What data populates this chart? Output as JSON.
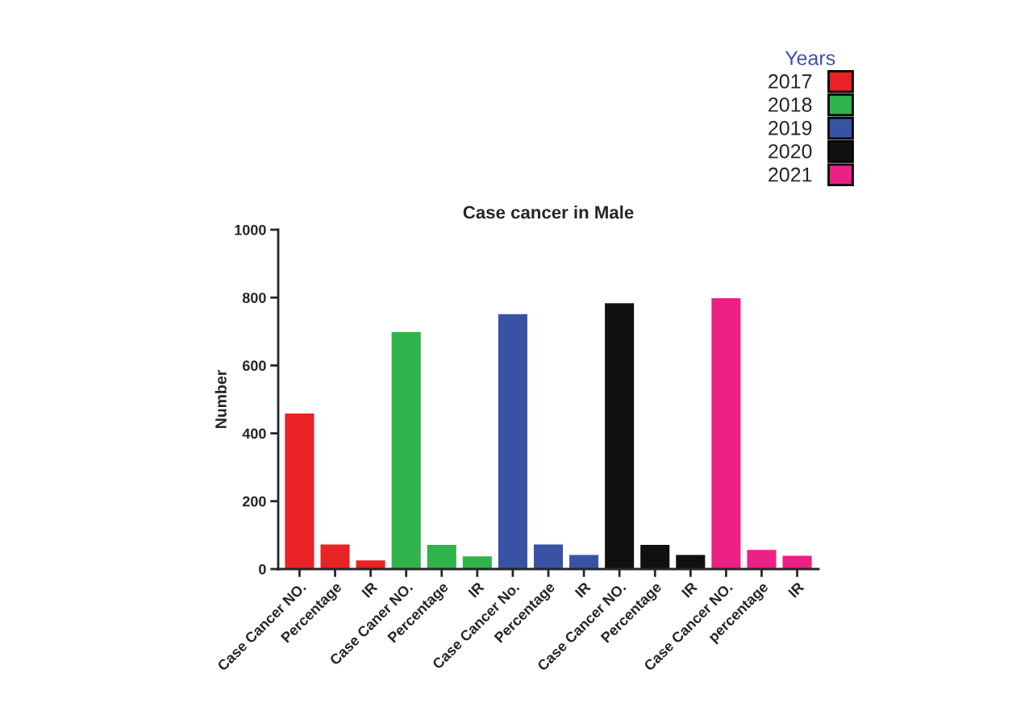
{
  "chart_data": {
    "type": "bar",
    "title": "Case cancer in Male",
    "ylabel": "Number",
    "legend_title": "Years",
    "categories": [
      "Case Cancer NO.",
      "Percentage",
      "IR",
      "Case Caner NO.",
      "Percentage",
      "IR",
      "Case Cancer No.",
      "Percentage",
      "IR",
      "Case Cancer NO.",
      "Percentage",
      "IR",
      "Case Cancer NO.",
      "percentage",
      "IR"
    ],
    "series": [
      {
        "name": "2017",
        "color": "#e82225",
        "values": [
          460,
          74,
          27,
          null,
          null,
          null,
          null,
          null,
          null,
          null,
          null,
          null,
          null,
          null,
          null
        ]
      },
      {
        "name": "2018",
        "color": "#2fb34a",
        "values": [
          null,
          null,
          null,
          700,
          73,
          39,
          null,
          null,
          null,
          null,
          null,
          null,
          null,
          null,
          null
        ]
      },
      {
        "name": "2019",
        "color": "#3953a4",
        "values": [
          null,
          null,
          null,
          null,
          null,
          null,
          753,
          74,
          43,
          null,
          null,
          null,
          null,
          null,
          null
        ]
      },
      {
        "name": "2020",
        "color": "#101010",
        "values": [
          null,
          null,
          null,
          null,
          null,
          null,
          null,
          null,
          null,
          785,
          73,
          43,
          null,
          null,
          null
        ]
      },
      {
        "name": "2021",
        "color": "#ec2085",
        "values": [
          null,
          null,
          null,
          null,
          null,
          null,
          null,
          null,
          null,
          null,
          null,
          null,
          800,
          58,
          41
        ]
      }
    ],
    "ylim": [
      0,
      1000
    ],
    "yticks": [
      0,
      200,
      400,
      600,
      800,
      1000
    ],
    "grid": false,
    "legend": "top right"
  }
}
